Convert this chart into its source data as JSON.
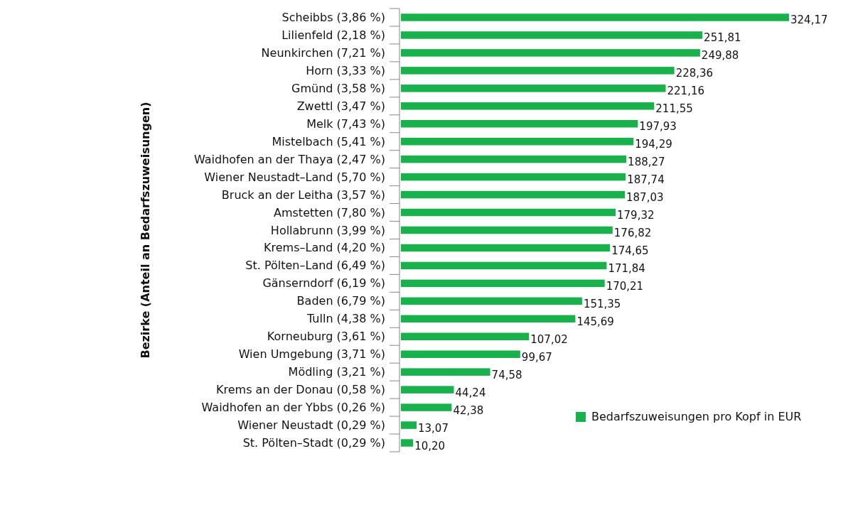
{
  "chart_data": {
    "type": "bar",
    "orientation": "horizontal",
    "ylabel": "Bezirke (Anteil an Bedarfszuweisungen)",
    "categories": [
      "Scheibbs (3,86 %)",
      "Lilienfeld (2,18 %)",
      "Neunkirchen (7,21 %)",
      "Horn (3,33 %)",
      "Gmünd (3,58 %)",
      "Zwettl (3,47 %)",
      "Melk (7,43 %)",
      "Mistelbach (5,41 %)",
      "Waidhofen an der Thaya (2,47 %)",
      "Wiener Neustadt–Land (5,70 %)",
      "Bruck an der Leitha (3,57 %)",
      "Amstetten (7,80 %)",
      "Hollabrunn (3,99 %)",
      "Krems–Land (4,20 %)",
      "St. Pölten–Land (6,49 %)",
      "Gänserndorf (6,19 %)",
      "Baden (6,79 %)",
      "Tulln (4,38 %)",
      "Korneuburg (3,61 %)",
      "Wien Umgebung (3,71 %)",
      "Mödling (3,21 %)",
      "Krems an der Donau (0,58 %)",
      "Waidhofen an der Ybbs (0,26 %)",
      "Wiener Neustadt (0,29 %)",
      "St. Pölten–Stadt (0,29 %)"
    ],
    "series": [
      {
        "name": "Bedarfszuweisungen pro Kopf in EUR",
        "color": "#19b14c",
        "values": [
          324.17,
          251.81,
          249.88,
          228.36,
          221.16,
          211.55,
          197.93,
          194.29,
          188.27,
          187.74,
          187.03,
          179.32,
          176.82,
          174.65,
          171.84,
          170.21,
          151.35,
          145.69,
          107.02,
          99.67,
          74.58,
          44.24,
          42.38,
          13.07,
          10.2
        ],
        "value_labels": [
          "324,17",
          "251,81",
          "249,88",
          "228,36",
          "221,16",
          "211,55",
          "197,93",
          "194,29",
          "188,27",
          "187,74",
          "187,03",
          "179,32",
          "176,82",
          "174,65",
          "171,84",
          "170,21",
          "151,35",
          "145,69",
          "107,02",
          "99,67",
          "74,58",
          "44,24",
          "42,38",
          "13,07",
          "10,20"
        ]
      }
    ],
    "legend": "bottom right"
  }
}
